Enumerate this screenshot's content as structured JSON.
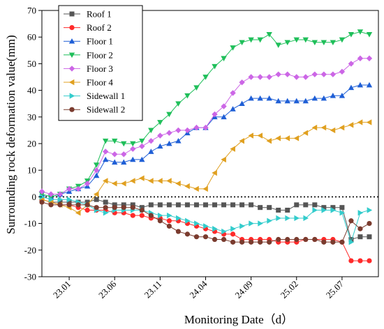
{
  "chart_data": {
    "type": "line",
    "title": "",
    "xlabel": "Monitoring Date（d）",
    "ylabel": "Surrounding rock deformation value(mm)",
    "xlim": [
      0,
      37
    ],
    "ylim": [
      -30,
      70
    ],
    "yticks": [
      -30,
      -20,
      -10,
      0,
      10,
      20,
      30,
      40,
      50,
      60,
      70
    ],
    "xtick_positions": [
      3,
      8,
      13,
      18,
      23,
      28,
      33
    ],
    "xtick_labels": [
      "23.01",
      "23.06",
      "23.11",
      "24.04",
      "24.09",
      "25.02",
      "25.07"
    ],
    "zero_reference_line": "dotted",
    "grid": false,
    "legend_position": "top-left",
    "x": [
      0,
      1,
      2,
      3,
      4,
      5,
      6,
      7,
      8,
      9,
      10,
      11,
      12,
      13,
      14,
      15,
      16,
      17,
      18,
      19,
      20,
      21,
      22,
      23,
      24,
      25,
      26,
      27,
      28,
      29,
      30,
      31,
      32,
      33,
      34,
      35,
      36
    ],
    "series": [
      {
        "name": "Roof 1",
        "color": "#555555",
        "marker": "square",
        "values": [
          -1,
          -2,
          -2,
          -2,
          -2,
          -2,
          -1,
          -2,
          -3,
          -3,
          -3,
          -4,
          -3,
          -3,
          -3,
          -3,
          -3,
          -3,
          -3,
          -3,
          -3,
          -3,
          -3,
          -3,
          -4,
          -4,
          -5,
          -5,
          -3,
          -3,
          -3,
          -4,
          -4,
          -4,
          -16,
          -15,
          -15
        ]
      },
      {
        "name": "Roof 2",
        "color": "#ff2a2a",
        "marker": "circle",
        "values": [
          -1,
          -2,
          -3,
          -3,
          -4,
          -5,
          -5,
          -5,
          -6,
          -6,
          -7,
          -7,
          -8,
          -8,
          -9,
          -9,
          -10,
          -11,
          -12,
          -13,
          -14,
          -14,
          -16,
          -16,
          -16,
          -16,
          -17,
          -17,
          -17,
          -16,
          -16,
          -16,
          -16,
          -17,
          -24,
          -24,
          -24
        ]
      },
      {
        "name": "Floor 1",
        "color": "#1f5fd6",
        "marker": "triangle-up",
        "values": [
          1,
          0,
          1,
          2,
          3,
          4,
          8,
          14,
          13,
          13,
          14,
          14,
          17,
          19,
          20,
          21,
          24,
          26,
          26,
          30,
          30,
          33,
          35,
          37,
          37,
          37,
          36,
          36,
          36,
          36,
          37,
          37,
          38,
          38,
          41,
          42,
          42
        ]
      },
      {
        "name": "Floor 2",
        "color": "#1fbf5a",
        "marker": "triangle-down",
        "values": [
          1,
          0,
          1,
          3,
          4,
          6,
          12,
          21,
          21,
          20,
          20,
          21,
          25,
          28,
          31,
          35,
          38,
          41,
          45,
          49,
          52,
          56,
          58,
          59,
          59,
          61,
          57,
          58,
          59,
          59,
          58,
          58,
          58,
          59,
          61,
          62,
          61
        ]
      },
      {
        "name": "Floor 3",
        "color": "#cc66e6",
        "marker": "diamond",
        "values": [
          2,
          1,
          1,
          3,
          3,
          5,
          10,
          17,
          16,
          16,
          18,
          19,
          21,
          23,
          24,
          25,
          25,
          26,
          26,
          31,
          34,
          39,
          43,
          45,
          45,
          45,
          46,
          46,
          45,
          45,
          46,
          46,
          46,
          47,
          50,
          52,
          52
        ]
      },
      {
        "name": "Floor 4",
        "color": "#e0a020",
        "marker": "triangle-left",
        "values": [
          -1,
          -2,
          -3,
          -4,
          -6,
          -3,
          1,
          6,
          5,
          5,
          6,
          7,
          6,
          6,
          6,
          5,
          4,
          3,
          3,
          9,
          14,
          18,
          21,
          23,
          23,
          21,
          22,
          22,
          22,
          24,
          26,
          26,
          25,
          26,
          27,
          28,
          28
        ]
      },
      {
        "name": "Sidewall 1",
        "color": "#33cccc",
        "marker": "triangle-right",
        "values": [
          0,
          -1,
          -1,
          -1,
          -2,
          -3,
          -5,
          -6,
          -5,
          -5,
          -5,
          -5,
          -6,
          -7,
          -7,
          -8,
          -9,
          -10,
          -11,
          -12,
          -13,
          -12,
          -11,
          -10,
          -10,
          -9,
          -8,
          -8,
          -8,
          -8,
          -5,
          -5,
          -5,
          -6,
          -17,
          -6,
          -5
        ]
      },
      {
        "name": "Sidewall 2",
        "color": "#7a3b2e",
        "marker": "circle",
        "values": [
          -2,
          -3,
          -3,
          -3,
          -3,
          -3,
          -4,
          -4,
          -4,
          -4,
          -4,
          -5,
          -7,
          -9,
          -11,
          -13,
          -14,
          -15,
          -15,
          -16,
          -16,
          -17,
          -17,
          -17,
          -17,
          -17,
          -16,
          -16,
          -16,
          -16,
          -16,
          -17,
          -17,
          -17,
          -9,
          -12,
          -10
        ]
      }
    ]
  }
}
